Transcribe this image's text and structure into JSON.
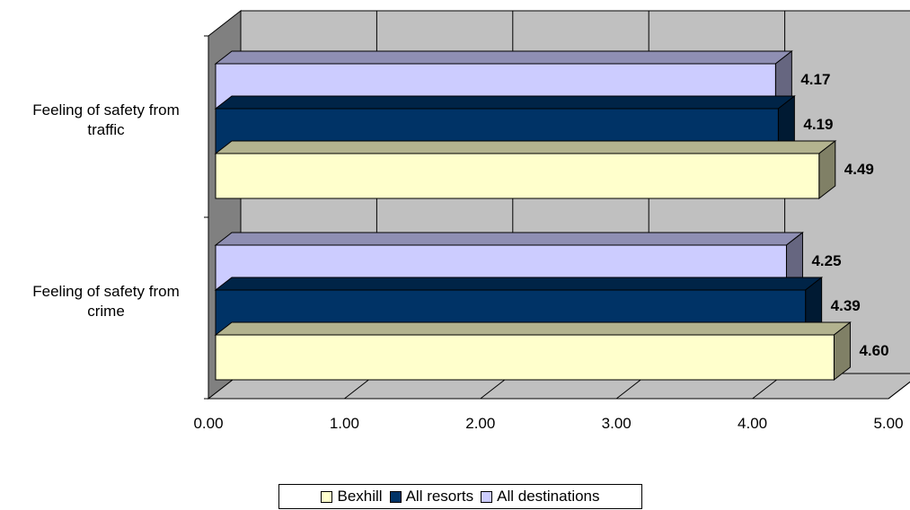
{
  "chart_data": {
    "type": "bar",
    "orientation": "horizontal",
    "style": "3d",
    "categories": [
      "Feeling of safety from traffic",
      "Feeling of safety from crime"
    ],
    "series": [
      {
        "name": "All destinations",
        "color": "#ccccff",
        "values": [
          4.17,
          4.25
        ]
      },
      {
        "name": "All resorts",
        "color": "#003366",
        "values": [
          4.19,
          4.39
        ]
      },
      {
        "name": "Bexhill",
        "color": "#ffffcc",
        "values": [
          4.49,
          4.6
        ]
      }
    ],
    "value_labels": [
      [
        "4.17",
        "4.25"
      ],
      [
        "4.19",
        "4.39"
      ],
      [
        "4.49",
        "4.60"
      ]
    ],
    "xlim": [
      0,
      5
    ],
    "x_ticks": [
      "0.00",
      "1.00",
      "2.00",
      "3.00",
      "4.00",
      "5.00"
    ],
    "grid": true,
    "legend_position": "bottom",
    "legend": [
      {
        "name": "Bexhill",
        "color": "#ffffcc"
      },
      {
        "name": "All resorts",
        "color": "#003366"
      },
      {
        "name": "All destinations",
        "color": "#ccccff"
      }
    ]
  }
}
